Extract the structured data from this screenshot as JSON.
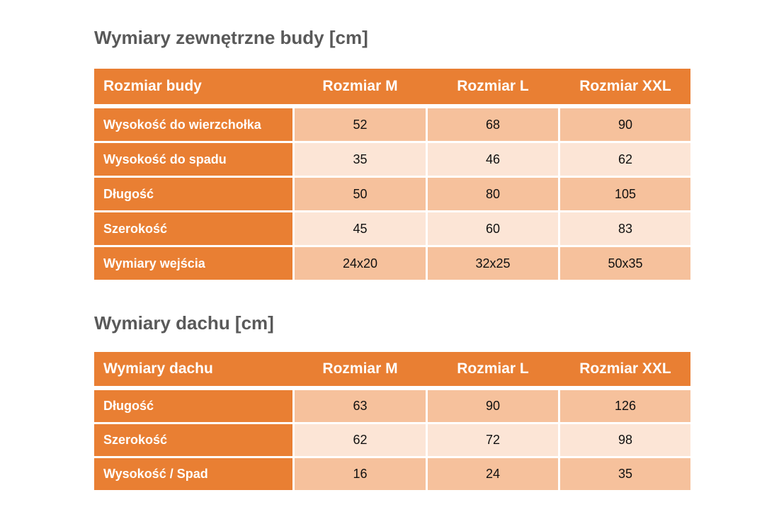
{
  "colors": {
    "header_orange": "#E97F33",
    "band_dark": "#F6C19C",
    "band_light": "#FCE5D6",
    "title_gray": "#595959",
    "header_text": "#ffffff",
    "value_text": "#111111",
    "background": "#ffffff"
  },
  "chart_data": [
    {
      "type": "table",
      "title": "Wymiary zewnętrzne budy [cm]",
      "unit": "cm",
      "columns": [
        "Rozmiar budy",
        "Rozmiar M",
        "Rozmiar L",
        "Rozmiar XXL"
      ],
      "rows": [
        {
          "label": "Wysokość do wierzchołka",
          "values": [
            "52",
            "68",
            "90"
          ]
        },
        {
          "label": "Wysokość do spadu",
          "values": [
            "35",
            "46",
            "62"
          ]
        },
        {
          "label": "Długość",
          "values": [
            "50",
            "80",
            "105"
          ]
        },
        {
          "label": "Szerokość",
          "values": [
            "45",
            "60",
            "83"
          ]
        },
        {
          "label": "Wymiary wejścia",
          "values": [
            "24x20",
            "32x25",
            "50x35"
          ]
        }
      ],
      "layout": {
        "banded_rows": true,
        "first_band": "dark",
        "legend": "none",
        "grid": "white-gaps"
      }
    },
    {
      "type": "table",
      "title": "Wymiary dachu [cm]",
      "unit": "cm",
      "columns": [
        "Wymiary dachu",
        "Rozmiar M",
        "Rozmiar L",
        "Rozmiar XXL"
      ],
      "rows": [
        {
          "label": "Długość",
          "values": [
            "63",
            "90",
            "126"
          ]
        },
        {
          "label": "Szerokość",
          "values": [
            "62",
            "72",
            "98"
          ]
        },
        {
          "label": "Wysokość / Spad",
          "values": [
            "16",
            "24",
            "35"
          ]
        }
      ],
      "layout": {
        "banded_rows": true,
        "first_band": "dark",
        "legend": "none",
        "grid": "white-gaps"
      }
    }
  ]
}
